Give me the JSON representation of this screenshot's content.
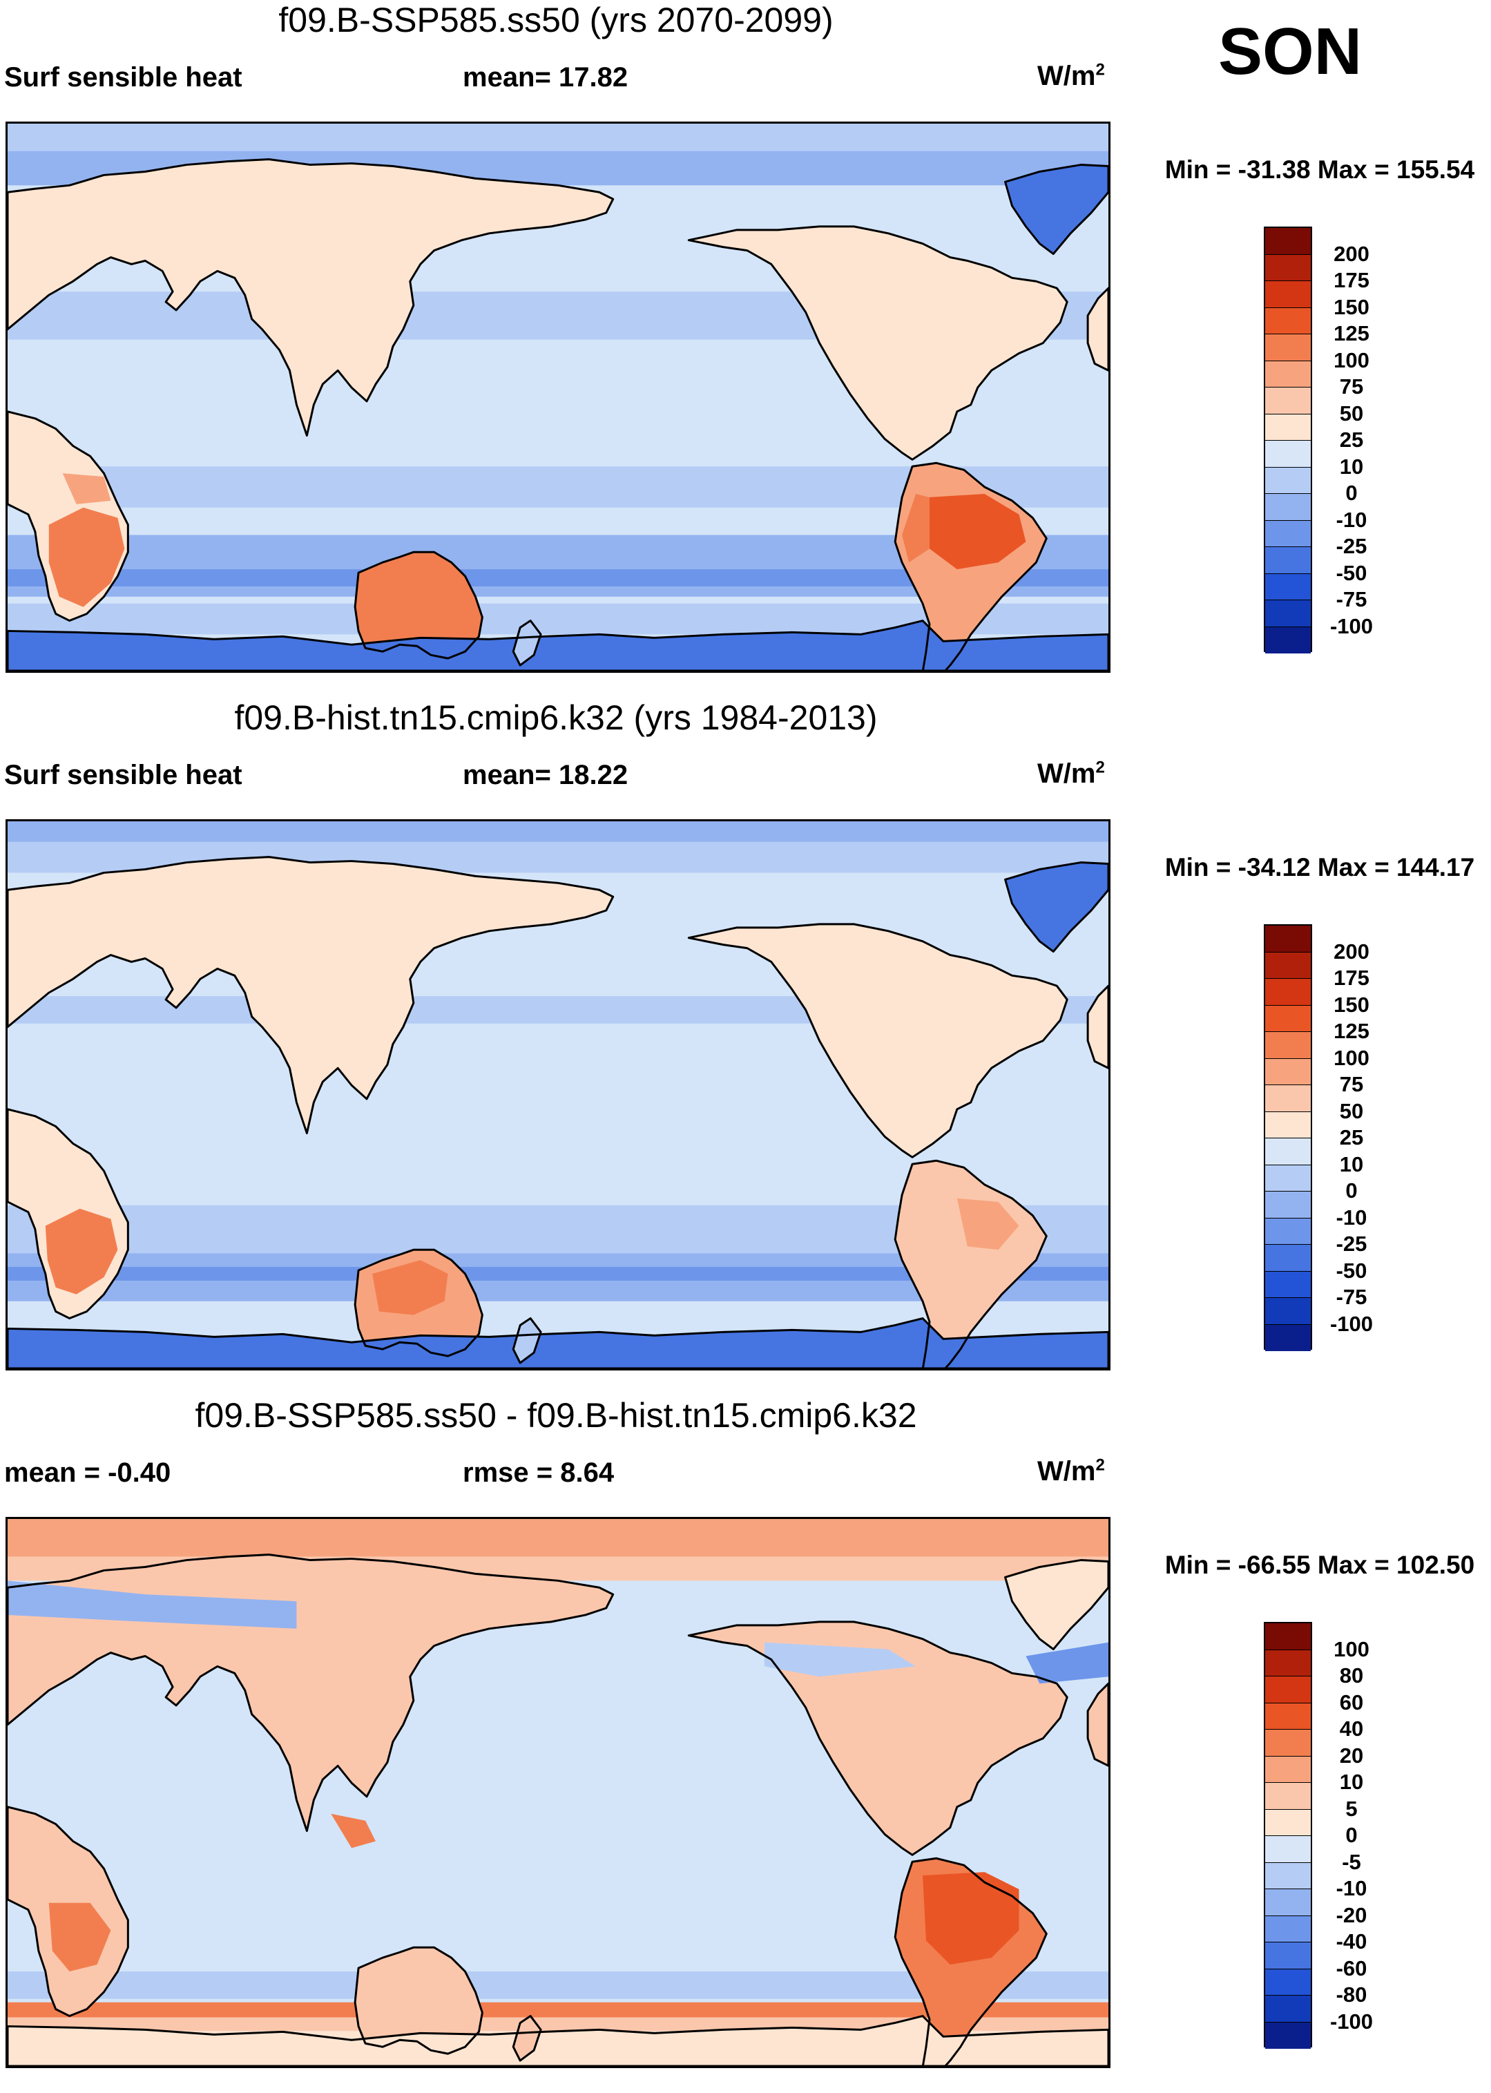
{
  "season": "SON",
  "units_label": "W/m",
  "units_power": "2",
  "panels": [
    {
      "title": "f09.B-SSP585.ss50 (yrs 2070-2099)",
      "left_label": "Surf sensible heat",
      "center_label": "mean=  17.82",
      "minmax": "Min = -31.38 Max = 155.54",
      "kind": "absolute",
      "colorbar": {
        "ticks": [
          "200",
          "175",
          "150",
          "125",
          "100",
          "75",
          "50",
          "25",
          "10",
          "0",
          "-10",
          "-25",
          "-50",
          "-75",
          "-100"
        ],
        "colors": [
          "#7a0a04",
          "#b1200a",
          "#d43512",
          "#ea5525",
          "#f27e4f",
          "#f7a47e",
          "#fbc7ac",
          "#fde5d2",
          "#d8e6f8",
          "#b5cdf5",
          "#93b3f0",
          "#6d95ea",
          "#4675e2",
          "#2353d6",
          "#113bb9",
          "#0a1f8c"
        ]
      }
    },
    {
      "title": "f09.B-hist.tn15.cmip6.k32 (yrs 1984-2013)",
      "left_label": "Surf sensible heat",
      "center_label": "mean=  18.22",
      "minmax": "Min = -34.12 Max = 144.17",
      "kind": "absolute",
      "colorbar": {
        "ticks": [
          "200",
          "175",
          "150",
          "125",
          "100",
          "75",
          "50",
          "25",
          "10",
          "0",
          "-10",
          "-25",
          "-50",
          "-75",
          "-100"
        ],
        "colors": [
          "#7a0a04",
          "#b1200a",
          "#d43512",
          "#ea5525",
          "#f27e4f",
          "#f7a47e",
          "#fbc7ac",
          "#fde5d2",
          "#d8e6f8",
          "#b5cdf5",
          "#93b3f0",
          "#6d95ea",
          "#4675e2",
          "#2353d6",
          "#113bb9",
          "#0a1f8c"
        ]
      }
    },
    {
      "title": "f09.B-SSP585.ss50 - f09.B-hist.tn15.cmip6.k32",
      "left_label": "mean =  -0.40",
      "center_label": "rmse =   8.64",
      "minmax": "Min = -66.55 Max = 102.50",
      "kind": "difference",
      "colorbar": {
        "ticks": [
          "100",
          "80",
          "60",
          "40",
          "20",
          "10",
          "5",
          "0",
          "-5",
          "-10",
          "-20",
          "-40",
          "-60",
          "-80",
          "-100"
        ],
        "colors": [
          "#7a0a04",
          "#b1200a",
          "#d43512",
          "#ea5525",
          "#f27e4f",
          "#f7a47e",
          "#fbc7ac",
          "#fde5d2",
          "#d8e6f8",
          "#b5cdf5",
          "#93b3f0",
          "#6d95ea",
          "#4675e2",
          "#2353d6",
          "#113bb9",
          "#0a1f8c"
        ]
      }
    }
  ]
}
